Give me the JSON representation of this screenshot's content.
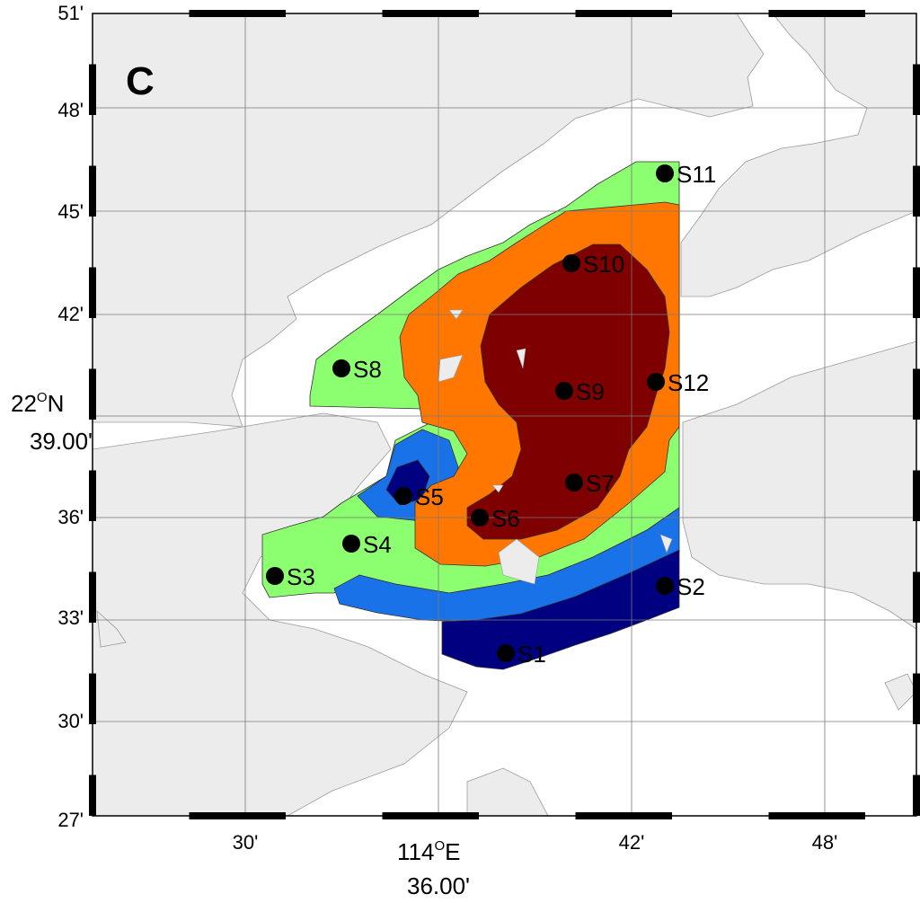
{
  "panel": {
    "letter": "C"
  },
  "axes": {
    "y_ticks": [
      "51'",
      "48'",
      "45'",
      "42'",
      "39.00'",
      "36'",
      "33'",
      "30'",
      "27'"
    ],
    "y_main_label": "22",
    "y_main_sup": "O",
    "y_main_suffix": "N",
    "x_ticks": [
      "30'",
      "114",
      "42'",
      "48'"
    ],
    "x_main_label": "114",
    "x_main_sup": "O",
    "x_main_suffix": "E",
    "x_main_minutes": "36.00'"
  },
  "stations": [
    {
      "id": "S1",
      "label": "S1"
    },
    {
      "id": "S2",
      "label": "S2"
    },
    {
      "id": "S3",
      "label": "S3"
    },
    {
      "id": "S4",
      "label": "S4"
    },
    {
      "id": "S5",
      "label": "S5"
    },
    {
      "id": "S6",
      "label": "S6"
    },
    {
      "id": "S7",
      "label": "S7"
    },
    {
      "id": "S8",
      "label": "S8"
    },
    {
      "id": "S9",
      "label": "S9"
    },
    {
      "id": "S10",
      "label": "S10"
    },
    {
      "id": "S11",
      "label": "S11"
    },
    {
      "id": "S12",
      "label": "S12"
    }
  ],
  "colors": {
    "land": "#ececec",
    "water": "#ffffff",
    "level_1": "#000080",
    "level_2": "#1a72e8",
    "level_3": "#8cff70",
    "level_4": "#ff7700",
    "level_5": "#7f0000",
    "station": "#000000",
    "grid": "#7a7a7a"
  }
}
